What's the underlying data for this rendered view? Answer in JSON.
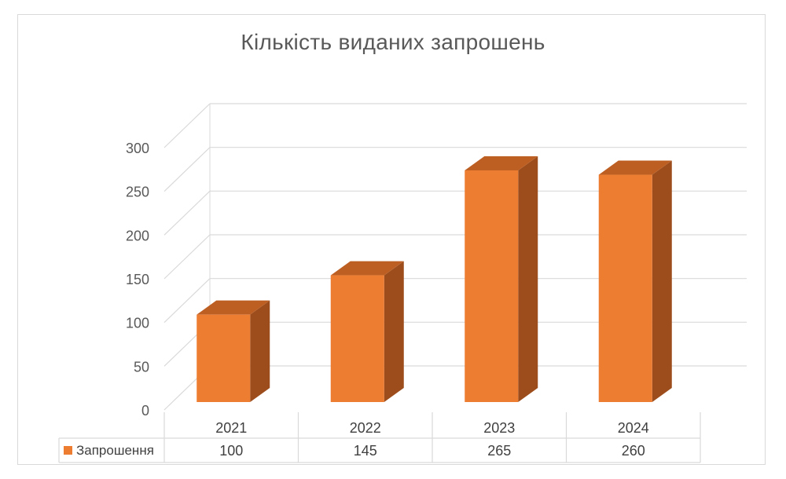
{
  "chart_data": {
    "type": "bar",
    "title": "Кількість виданих запрошень",
    "categories": [
      "2021",
      "2022",
      "2023",
      "2024"
    ],
    "series": [
      {
        "name": "Запрошення",
        "values": [
          100,
          145,
          265,
          260
        ]
      }
    ],
    "ylim": [
      0,
      300
    ],
    "yticks": [
      "0",
      "50",
      "100",
      "150",
      "200",
      "250",
      "300"
    ],
    "value_labels": [
      "100",
      "145",
      "265",
      "260"
    ],
    "grid": true,
    "legend": "data-table",
    "colors": {
      "bar_front": "#ED7D31",
      "bar_side": "#9C4D1B",
      "bar_top": "#BD5F23",
      "grid": "#d9d9d9"
    }
  }
}
